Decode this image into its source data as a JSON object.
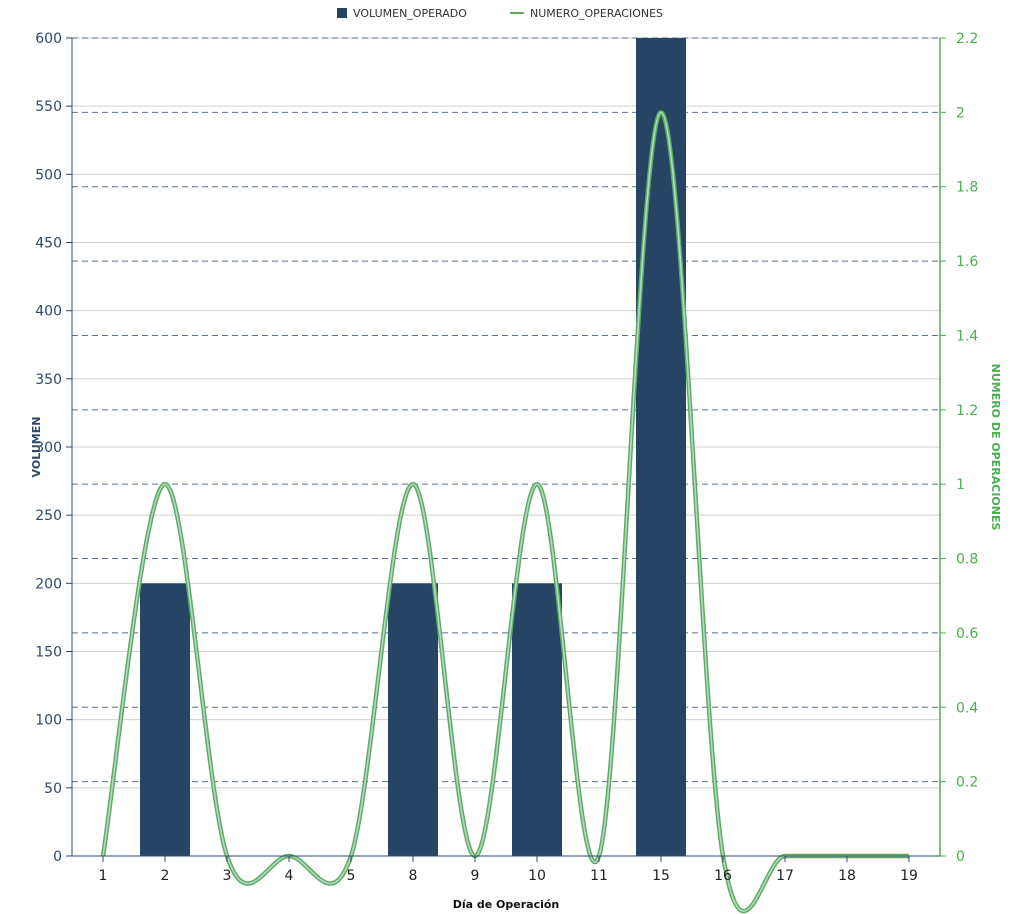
{
  "chart_data": {
    "type": "bar",
    "categories": [
      "1",
      "2",
      "3",
      "4",
      "5",
      "8",
      "9",
      "10",
      "11",
      "15",
      "16",
      "17",
      "18",
      "19"
    ],
    "xlabel": "Día de Operación",
    "series": [
      {
        "name": "VOLUMEN_OPERADO",
        "type": "bar",
        "axis": "left",
        "values": [
          0,
          200,
          0,
          0,
          0,
          200,
          0,
          200,
          0,
          600,
          0,
          0,
          0,
          0
        ]
      },
      {
        "name": "NUMERO_OPERACIONES",
        "type": "line",
        "axis": "right",
        "smooth": true,
        "values": [
          0,
          1,
          0,
          0,
          0,
          1,
          0,
          1,
          0,
          2,
          0,
          0,
          0,
          0
        ]
      }
    ],
    "y_left": {
      "label": "VOLUMEN",
      "ylim": [
        0,
        600
      ],
      "ticks": [
        "0",
        "50",
        "100",
        "150",
        "200",
        "250",
        "300",
        "350",
        "400",
        "450",
        "500",
        "550",
        "600"
      ]
    },
    "y_right": {
      "label": "NUMERO DE OPERACIONES",
      "ylim": [
        0,
        2.2
      ],
      "ticks": [
        "0",
        "0.2",
        "0.4",
        "0.6",
        "0.8",
        "1",
        "1.2",
        "1.4",
        "1.6",
        "1.8",
        "2",
        "2.2"
      ]
    },
    "legend_placement": "top-center",
    "grid": true,
    "colors": {
      "bar": "#264565",
      "line": "#5dae5a",
      "line_glow": "#b3d6d3",
      "left_axis": "#2d4a6b",
      "right_axis": "#4caf50"
    }
  }
}
